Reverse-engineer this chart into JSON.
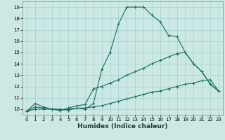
{
  "xlabel": "Humidex (Indice chaleur)",
  "bg_color": "#cce8e4",
  "grid_color": "#aad4d0",
  "line_color": "#1a6b5a",
  "xlim": [
    -0.5,
    23.5
  ],
  "ylim": [
    9.5,
    19.5
  ],
  "yticks": [
    10,
    11,
    12,
    13,
    14,
    15,
    16,
    17,
    18,
    19
  ],
  "xticks": [
    0,
    1,
    2,
    3,
    4,
    5,
    6,
    7,
    8,
    9,
    10,
    11,
    12,
    13,
    14,
    15,
    16,
    17,
    18,
    19,
    20,
    21,
    22,
    23
  ],
  "line1_x": [
    0,
    1,
    2,
    3,
    4,
    5,
    6,
    7,
    8,
    9,
    10,
    11,
    12,
    13,
    14,
    15,
    16,
    17,
    18,
    19,
    20,
    21,
    22,
    23
  ],
  "line1_y": [
    9.8,
    10.5,
    10.2,
    10.0,
    10.0,
    9.9,
    10.1,
    10.0,
    10.5,
    13.5,
    15.0,
    17.5,
    19.0,
    19.0,
    19.0,
    18.3,
    17.7,
    16.5,
    16.4,
    15.0,
    14.0,
    13.3,
    12.2,
    11.6
  ],
  "line2_x": [
    0,
    1,
    2,
    3,
    4,
    5,
    6,
    7,
    8,
    9,
    10,
    11,
    12,
    13,
    14,
    15,
    16,
    17,
    18,
    19,
    20,
    21,
    22,
    23
  ],
  "line2_y": [
    9.8,
    10.2,
    10.1,
    10.0,
    9.9,
    10.1,
    10.3,
    10.4,
    11.8,
    12.0,
    12.3,
    12.6,
    13.0,
    13.3,
    13.6,
    14.0,
    14.3,
    14.6,
    14.9,
    15.0,
    14.0,
    13.3,
    12.2,
    11.6
  ],
  "line3_x": [
    0,
    1,
    2,
    3,
    4,
    5,
    6,
    7,
    8,
    9,
    10,
    11,
    12,
    13,
    14,
    15,
    16,
    17,
    18,
    19,
    20,
    21,
    22,
    23
  ],
  "line3_y": [
    9.8,
    10.0,
    10.0,
    10.0,
    9.9,
    10.0,
    10.1,
    10.1,
    10.2,
    10.3,
    10.5,
    10.7,
    10.9,
    11.1,
    11.3,
    11.5,
    11.6,
    11.8,
    12.0,
    12.2,
    12.3,
    12.5,
    12.6,
    11.6
  ],
  "tick_fontsize": 5.0,
  "xlabel_fontsize": 6.5
}
